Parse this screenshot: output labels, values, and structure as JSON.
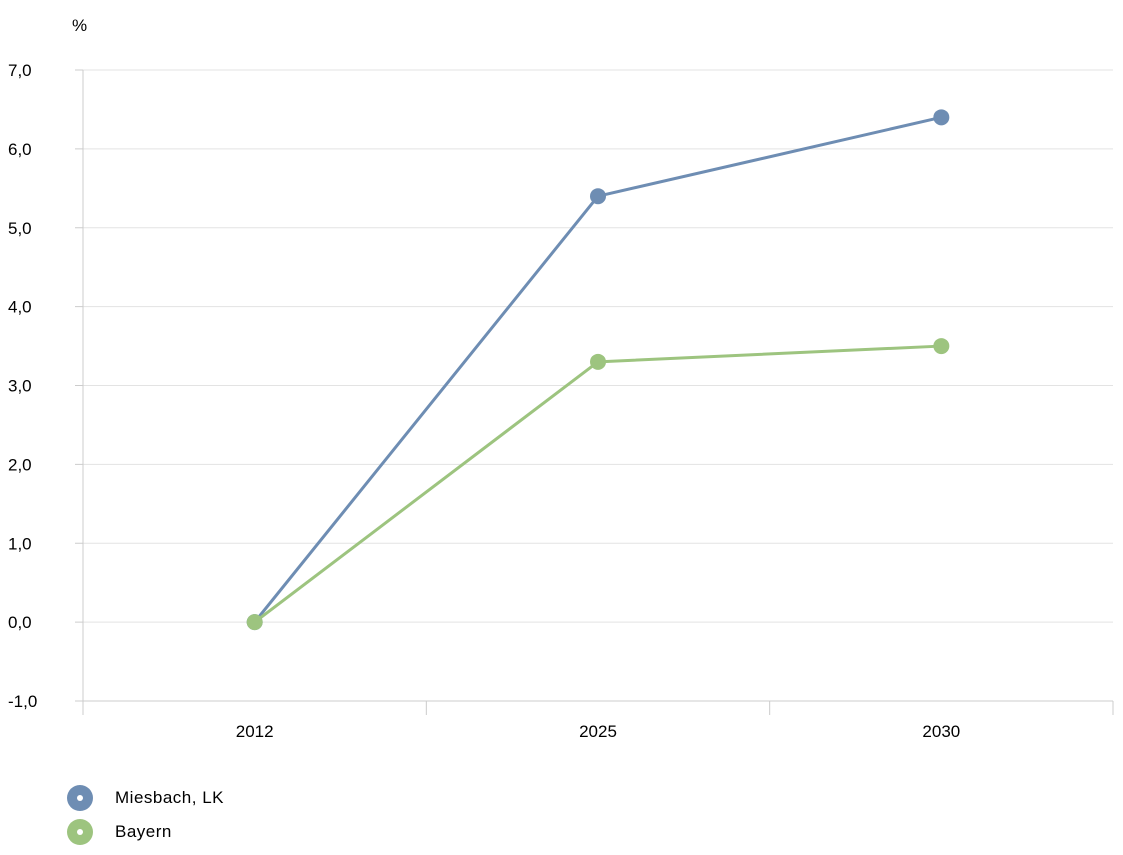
{
  "chart_data": {
    "type": "line",
    "unit_label": "%",
    "categories": [
      "2012",
      "2025",
      "2030"
    ],
    "series": [
      {
        "name": "Miesbach, LK",
        "values": [
          0.0,
          5.4,
          6.4
        ],
        "color": "#6E8DB3"
      },
      {
        "name": "Bayern",
        "values": [
          0.0,
          3.3,
          3.5
        ],
        "color": "#9DC47F"
      }
    ],
    "ylim": [
      -1.0,
      7.0
    ],
    "yticks": [
      "-1,0",
      "0,0",
      "1,0",
      "2,0",
      "3,0",
      "4,0",
      "5,0",
      "6,0",
      "7,0"
    ],
    "grid": true,
    "legend_position": "bottom-left"
  }
}
